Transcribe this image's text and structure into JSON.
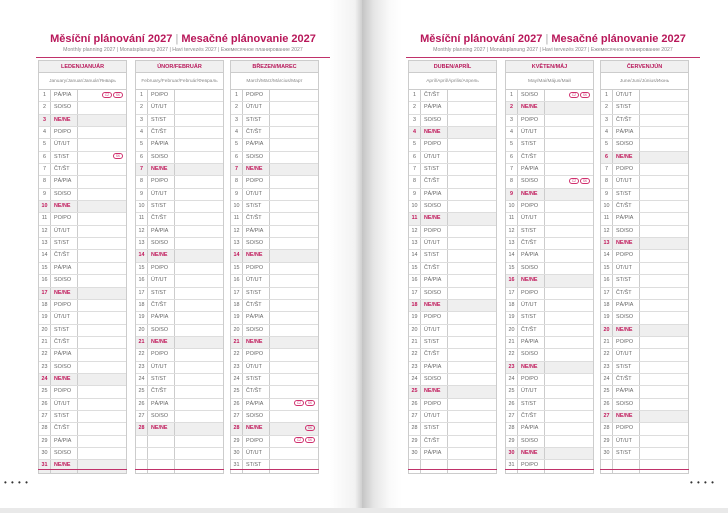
{
  "weekdays": [
    "PO/PO",
    "ÚT/UT",
    "ST/ST",
    "ČT/ŠT",
    "PÁ/PIA",
    "SO/SO",
    "NE/NE"
  ],
  "badges": {
    "cz": "CZ",
    "sk": "SK"
  },
  "colors": {
    "accent": "#b8185a",
    "sunday_bg": "#efefef"
  },
  "pages": [
    {
      "title_cz": "Měsíční plánování 2027",
      "title_sk": "Mesačné plánovanie 2027",
      "separator": "|",
      "subtitle": "Monthly planning 2027 | Monatsplanung 2027 | Havi tervezés 2027 | Ежемесячное планирование 2027",
      "months": [
        {
          "name": "LEDEN/JANUÁR",
          "sub": "January/Januar/Január/Январь",
          "days": 31,
          "first_weekday": 4,
          "holidays": {
            "1": [
              "cz",
              "sk"
            ],
            "6": [
              "sk"
            ]
          }
        },
        {
          "name": "ÚNOR/FEBRUÁR",
          "sub": "February/Februar/Február/Февраль",
          "days": 28,
          "first_weekday": 0,
          "holidays": {}
        },
        {
          "name": "BŘEZEN/MAREC",
          "sub": "March/März/Március/Март",
          "days": 31,
          "first_weekday": 0,
          "holidays": {
            "26": [
              "cz",
              "sk"
            ],
            "28": [
              "sk"
            ],
            "29": [
              "cz",
              "sk"
            ]
          }
        }
      ]
    },
    {
      "title_cz": "Měsíční plánování 2027",
      "title_sk": "Mesačné plánovanie 2027",
      "separator": "|",
      "subtitle": "Monthly planning 2027 | Monatsplanung 2027 | Havi tervezés 2027 | Ежемесячное планирование 2027",
      "months": [
        {
          "name": "DUBEN/APRÍL",
          "sub": "April/April/Április/Апрель",
          "days": 30,
          "first_weekday": 3,
          "holidays": {}
        },
        {
          "name": "KVĚTEN/MÁJ",
          "sub": "May/Mai/Május/Май",
          "days": 31,
          "first_weekday": 5,
          "holidays": {
            "1": [
              "cz",
              "sk"
            ],
            "8": [
              "cz",
              "sk"
            ]
          }
        },
        {
          "name": "ČERVEN/JÚN",
          "sub": "June/Juni/Június/Июнь",
          "days": 30,
          "first_weekday": 1,
          "holidays": {}
        }
      ]
    }
  ]
}
